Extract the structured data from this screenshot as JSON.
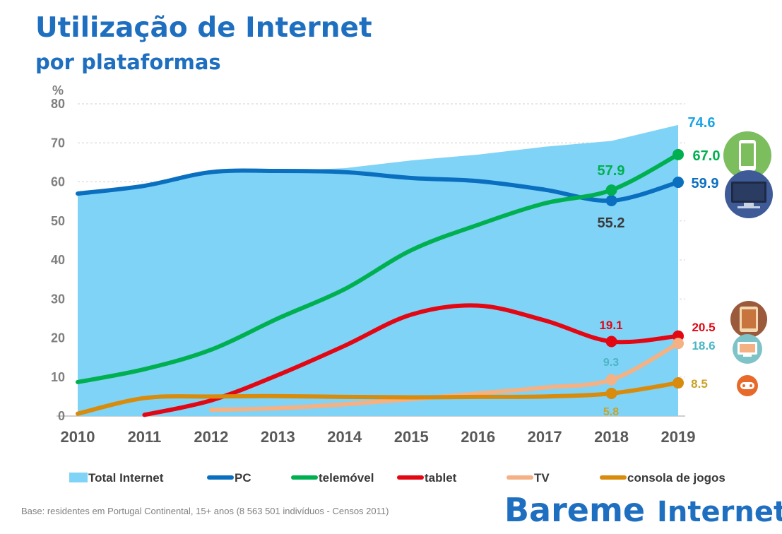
{
  "header": {
    "title": "Utilização de Internet",
    "subtitle": "por plataformas"
  },
  "chart_data": {
    "type": "line",
    "y_unit": "%",
    "ylim": [
      0,
      80
    ],
    "yticks": [
      0,
      10,
      20,
      30,
      40,
      50,
      60,
      70,
      80
    ],
    "x": [
      "2010",
      "2011",
      "2012",
      "2013",
      "2014",
      "2015",
      "2016",
      "2017",
      "2018",
      "2019"
    ],
    "grid": true,
    "legend_position": "bottom",
    "series": [
      {
        "name": "Total Internet",
        "style": "area",
        "color": "#7fd3f7",
        "values": [
          57,
          59,
          62.5,
          62.8,
          63.5,
          65.5,
          67,
          69,
          70.5,
          74.6
        ]
      },
      {
        "name": "PC",
        "style": "line",
        "color": "#0b6fc0",
        "values": [
          57,
          59,
          62.5,
          62.8,
          62.5,
          61,
          60.2,
          58,
          55.2,
          59.9
        ]
      },
      {
        "name": "telemóvel",
        "style": "line",
        "color": "#00b050",
        "values": [
          8.7,
          12,
          17,
          25,
          32.5,
          42.5,
          49,
          54.5,
          57.9,
          67.0
        ]
      },
      {
        "name": "tablet",
        "style": "line",
        "color": "#e30613",
        "values": [
          null,
          0.3,
          4,
          10.5,
          18,
          26,
          28.3,
          24.5,
          19.1,
          20.5
        ]
      },
      {
        "name": "TV",
        "style": "line",
        "color": "#f4b183",
        "values": [
          null,
          null,
          1.6,
          2,
          3,
          4.3,
          5.8,
          7.3,
          9.3,
          18.6
        ]
      },
      {
        "name": "consola de jogos",
        "style": "line",
        "color": "#d98b0c",
        "values": [
          0.6,
          4.6,
          5,
          5.1,
          4.9,
          4.8,
          4.9,
          5,
          5.8,
          8.5
        ]
      }
    ],
    "markers": [
      {
        "series": 1,
        "index": 8
      },
      {
        "series": 1,
        "index": 9
      },
      {
        "series": 2,
        "index": 8
      },
      {
        "series": 2,
        "index": 9
      },
      {
        "series": 3,
        "index": 8
      },
      {
        "series": 3,
        "index": 9
      },
      {
        "series": 4,
        "index": 8
      },
      {
        "series": 4,
        "index": 9
      },
      {
        "series": 5,
        "index": 8
      },
      {
        "series": 5,
        "index": 9
      }
    ],
    "data_labels": [
      {
        "text": "74.6",
        "color": "#1aa3e8"
      },
      {
        "text": "67.0",
        "color": "#00b050"
      },
      {
        "text": "59.9",
        "color": "#0b6fc0"
      },
      {
        "text": "57.9",
        "color": "#00b050"
      },
      {
        "text": "55.2",
        "color": "#3a3a3a"
      },
      {
        "text": "19.1",
        "color": "#e30613"
      },
      {
        "text": "20.5",
        "color": "#e30613"
      },
      {
        "text": "18.6",
        "color": "#4ab5c4"
      },
      {
        "text": "9.3",
        "color": "#4ab5c4"
      },
      {
        "text": "8.5",
        "color": "#c9a227"
      },
      {
        "text": "5.8",
        "color": "#c9a227"
      }
    ]
  },
  "icons": [
    {
      "name": "smartphone-icon",
      "color": "#7cbd5e"
    },
    {
      "name": "computer-monitor-icon",
      "color": "#3e5b98"
    },
    {
      "name": "tablet-icon",
      "color": "#9c5a3c"
    },
    {
      "name": "tv-icon",
      "color": "#7ec3c7"
    },
    {
      "name": "gamepad-icon",
      "color": "#e86a2a"
    }
  ],
  "footnote": "Base: residentes em Portugal Continental, 15+ anos (8 563  501  indivíduos - Censos 2011)",
  "brand": {
    "word1": "Bareme",
    "word2": "Internet"
  }
}
